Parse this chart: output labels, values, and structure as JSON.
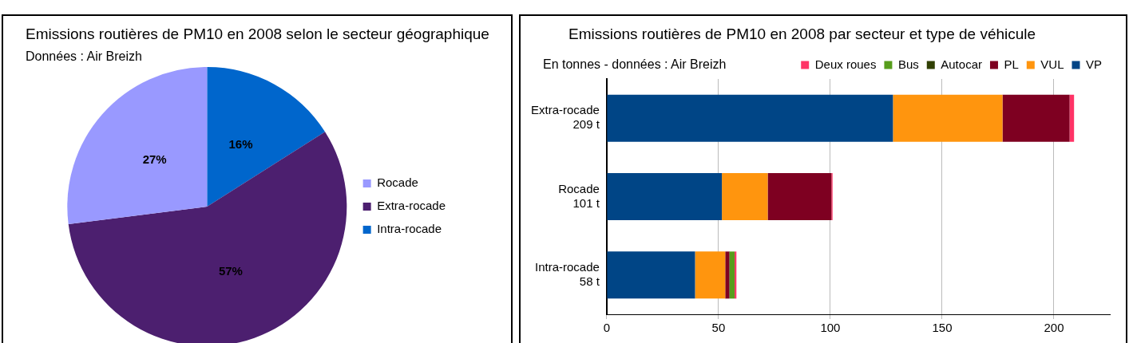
{
  "chart_data": [
    {
      "type": "pie",
      "title": "Emissions routières de PM10 en 2008 selon le secteur géographique",
      "subtitle": "Données : Air Breizh",
      "categories": [
        "Rocade",
        "Extra-rocade",
        "Intra-rocade"
      ],
      "values": [
        27,
        57,
        16
      ],
      "colors": [
        "#9999ff",
        "#4c1f6f",
        "#0066cc"
      ],
      "value_labels": [
        "27%",
        "57%",
        "16%"
      ],
      "legend": "right"
    },
    {
      "type": "bar",
      "orientation": "horizontal",
      "stacked": true,
      "title": "Emissions routières de PM10 en 2008 par secteur et type de véhicule",
      "subtitle": "En tonnes - données :  Air Breizh",
      "categories": [
        "Extra-rocade\n209 t",
        "Rocade\n101 t",
        "Intra-rocade\n58 t"
      ],
      "series": [
        {
          "name": "VP",
          "color": "#004586",
          "values": [
            128,
            51.5,
            39.5
          ]
        },
        {
          "name": "VUL",
          "color": "#ff950e",
          "values": [
            49,
            20.5,
            13.5
          ]
        },
        {
          "name": "PL",
          "color": "#7e0021",
          "values": [
            30,
            28.5,
            1.8
          ]
        },
        {
          "name": "Autocar",
          "color": "#314004",
          "values": [
            0,
            0,
            0.2
          ]
        },
        {
          "name": "Bus",
          "color": "#579d1c",
          "values": [
            0,
            0,
            2.2
          ]
        },
        {
          "name": "Deux roues",
          "color": "#ff3366",
          "values": [
            2,
            0.5,
            0.8
          ]
        }
      ],
      "xlim": [
        0,
        225
      ],
      "xticks": [
        0,
        50,
        100,
        150,
        200
      ],
      "grid": "x",
      "legend": "top right"
    }
  ]
}
